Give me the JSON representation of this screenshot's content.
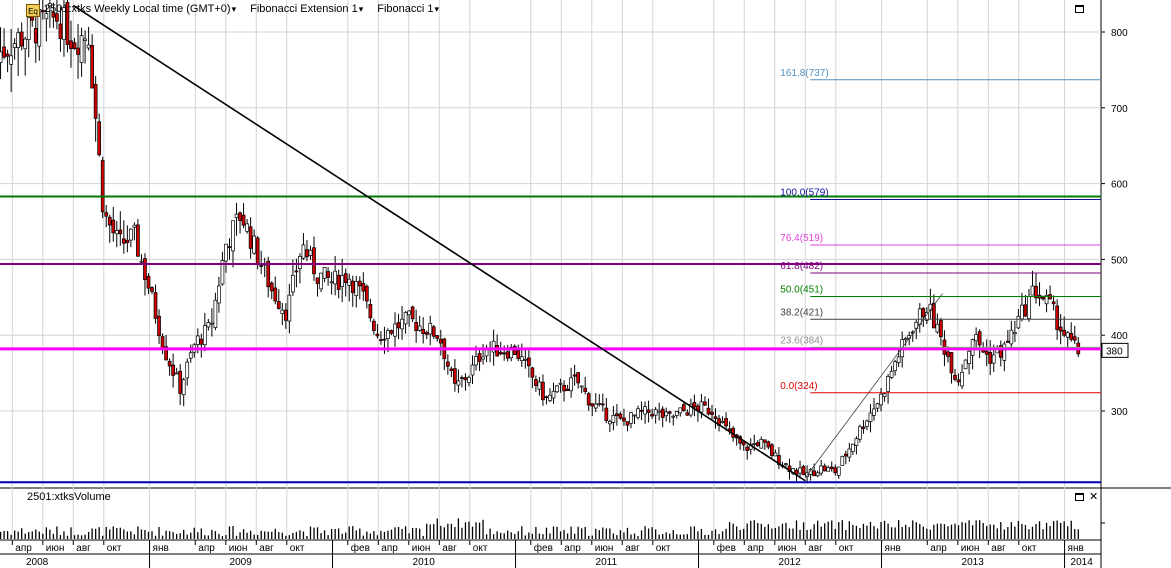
{
  "header": {
    "series_label": "2501:xtks Weekly Local time (GMT+0)",
    "study1_label": "Fibonacci Extension 1",
    "study2_label": "Fibonacci 1",
    "icon": "eq-chart-icon"
  },
  "volume_panel": {
    "label": "2501:xtksVolume"
  },
  "chart_data": {
    "type": "candlestick",
    "price_axis": {
      "ticks": [
        300,
        400,
        500,
        600,
        700,
        800
      ],
      "range": [
        205,
        840
      ]
    },
    "current_price_label": "380",
    "time_axis": {
      "months": [
        {
          "label": "апр",
          "date": "2008-04"
        },
        {
          "label": "июн",
          "date": "2008-06"
        },
        {
          "label": "авг",
          "date": "2008-08"
        },
        {
          "label": "окт",
          "date": "2008-10"
        },
        {
          "label": "янв",
          "date": "2009-01"
        },
        {
          "label": "апр",
          "date": "2009-04"
        },
        {
          "label": "июн",
          "date": "2009-06"
        },
        {
          "label": "авг",
          "date": "2009-08"
        },
        {
          "label": "окт",
          "date": "2009-10"
        },
        {
          "label": "фев",
          "date": "2010-02"
        },
        {
          "label": "апр",
          "date": "2010-04"
        },
        {
          "label": "июн",
          "date": "2010-06"
        },
        {
          "label": "авг",
          "date": "2010-08"
        },
        {
          "label": "окт",
          "date": "2010-10"
        },
        {
          "label": "фев",
          "date": "2011-02"
        },
        {
          "label": "апр",
          "date": "2011-04"
        },
        {
          "label": "июн",
          "date": "2011-06"
        },
        {
          "label": "авг",
          "date": "2011-08"
        },
        {
          "label": "окт",
          "date": "2011-10"
        },
        {
          "label": "фев",
          "date": "2012-02"
        },
        {
          "label": "апр",
          "date": "2012-04"
        },
        {
          "label": "июн",
          "date": "2012-06"
        },
        {
          "label": "авг",
          "date": "2012-08"
        },
        {
          "label": "окт",
          "date": "2012-10"
        },
        {
          "label": "янв",
          "date": "2013-01"
        },
        {
          "label": "апр",
          "date": "2013-04"
        },
        {
          "label": "июн",
          "date": "2013-06"
        },
        {
          "label": "авг",
          "date": "2013-08"
        },
        {
          "label": "окт",
          "date": "2013-10"
        },
        {
          "label": "янв",
          "date": "2014-01"
        }
      ],
      "years": [
        "2008",
        "2009",
        "2010",
        "2011",
        "2012",
        "2013",
        "2014"
      ]
    },
    "price_path": [
      [
        "2008-03",
        770
      ],
      [
        "2008-05",
        800
      ],
      [
        "2008-07",
        820
      ],
      [
        "2008-08",
        790
      ],
      [
        "2008-09",
        800
      ],
      [
        "2008-10",
        560
      ],
      [
        "2008-11",
        520
      ],
      [
        "2008-12",
        530
      ],
      [
        "2009-01",
        460
      ],
      [
        "2009-02",
        380
      ],
      [
        "2009-03",
        330
      ],
      [
        "2009-04",
        390
      ],
      [
        "2009-05",
        410
      ],
      [
        "2009-06",
        520
      ],
      [
        "2009-07",
        560
      ],
      [
        "2009-08",
        510
      ],
      [
        "2009-09",
        460
      ],
      [
        "2009-10",
        430
      ],
      [
        "2009-11",
        520
      ],
      [
        "2009-12",
        480
      ],
      [
        "2010-01",
        470
      ],
      [
        "2010-02",
        480
      ],
      [
        "2010-03",
        450
      ],
      [
        "2010-04",
        400
      ],
      [
        "2010-05",
        410
      ],
      [
        "2010-06",
        420
      ],
      [
        "2010-07",
        410
      ],
      [
        "2010-08",
        400
      ],
      [
        "2010-09",
        330
      ],
      [
        "2010-10",
        350
      ],
      [
        "2010-11",
        385
      ],
      [
        "2010-12",
        380
      ],
      [
        "2011-01",
        380
      ],
      [
        "2011-03",
        315
      ],
      [
        "2011-04",
        330
      ],
      [
        "2011-05",
        340
      ],
      [
        "2011-06",
        310
      ],
      [
        "2011-07",
        295
      ],
      [
        "2011-08",
        285
      ],
      [
        "2011-09",
        295
      ],
      [
        "2011-10",
        300
      ],
      [
        "2011-11",
        290
      ],
      [
        "2011-12",
        300
      ],
      [
        "2012-01",
        305
      ],
      [
        "2012-02",
        300
      ],
      [
        "2012-03",
        270
      ],
      [
        "2012-04",
        250
      ],
      [
        "2012-05",
        260
      ],
      [
        "2012-06",
        240
      ],
      [
        "2012-07",
        225
      ],
      [
        "2012-08",
        215
      ],
      [
        "2012-09",
        225
      ],
      [
        "2012-10",
        220
      ],
      [
        "2012-11",
        255
      ],
      [
        "2012-12",
        290
      ],
      [
        "2013-01",
        320
      ],
      [
        "2013-02",
        370
      ],
      [
        "2013-03",
        410
      ],
      [
        "2013-04",
        440
      ],
      [
        "2013-05",
        390
      ],
      [
        "2013-06",
        340
      ],
      [
        "2013-07",
        400
      ],
      [
        "2013-08",
        370
      ],
      [
        "2013-09",
        380
      ],
      [
        "2013-10",
        420
      ],
      [
        "2013-11",
        460
      ],
      [
        "2013-12",
        440
      ],
      [
        "2014-01",
        400
      ],
      [
        "2014-02",
        375
      ]
    ],
    "horizontal_lines": [
      {
        "price": 583,
        "color": "#007a00"
      },
      {
        "price": 494,
        "color": "#800080"
      },
      {
        "price": 382,
        "color": "#ff00ff"
      },
      {
        "price": 206,
        "color": "#0000b0"
      }
    ],
    "trendline": {
      "from": [
        "2008-08",
        835
      ],
      "to": [
        "2012-08",
        208
      ],
      "color": "#000000"
    },
    "fibonacci_levels": [
      {
        "label": "161.8(737)",
        "price": 737,
        "color": "#4f8fbf"
      },
      {
        "label": "100.0(579)",
        "price": 579,
        "color": "#1010a0"
      },
      {
        "label": "76.4(519)",
        "price": 519,
        "color": "#e040e0"
      },
      {
        "label": "61.8(482)",
        "price": 482,
        "color": "#800080"
      },
      {
        "label": "50.0(451)",
        "price": 451,
        "color": "#008000"
      },
      {
        "label": "38.2(421)",
        "price": 421,
        "color": "#404040"
      },
      {
        "label": "23.6(384)",
        "price": 384,
        "color": "#909090"
      },
      {
        "label": "0.0(324)",
        "price": 324,
        "color": "#e00000"
      }
    ],
    "fib_extension_leg": {
      "from": [
        "2012-08",
        212
      ],
      "to": [
        "2013-05",
        455
      ]
    }
  }
}
